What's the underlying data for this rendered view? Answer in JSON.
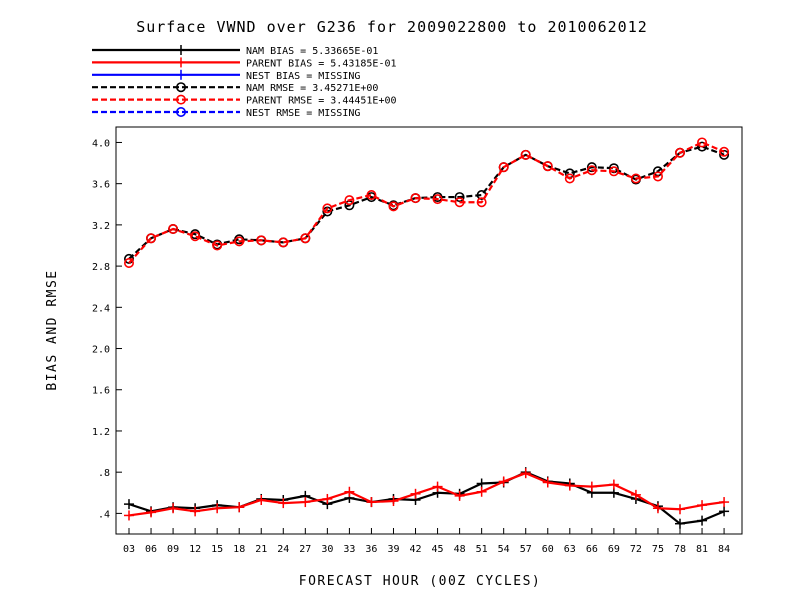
{
  "chart_data": {
    "type": "line",
    "title": "Surface VWND over G236 for 2009022800 to 2010062012",
    "xlabel": "FORECAST HOUR (00Z CYCLES)",
    "ylabel": "BIAS AND RMSE",
    "ylim": [
      0.2,
      4.15
    ],
    "yticks": [
      ".4",
      ".8",
      "1.2",
      "1.6",
      "2.0",
      "2.4",
      "2.8",
      "3.2",
      "3.6",
      "4.0"
    ],
    "ytick_values": [
      0.4,
      0.8,
      1.2,
      1.6,
      2.0,
      2.4,
      2.8,
      3.2,
      3.6,
      4.0
    ],
    "categories": [
      "03",
      "06",
      "09",
      "12",
      "15",
      "18",
      "21",
      "24",
      "27",
      "30",
      "33",
      "36",
      "39",
      "42",
      "45",
      "48",
      "51",
      "54",
      "57",
      "60",
      "63",
      "66",
      "69",
      "72",
      "75",
      "78",
      "81",
      "84"
    ],
    "legend_position": "top-left",
    "legend": [
      {
        "text": "NAM BIAS =  5.33665E-01",
        "color": "#000000",
        "dashed": false,
        "marker": "plus"
      },
      {
        "text": "PARENT BIAS =  5.43185E-01",
        "color": "#ff0000",
        "dashed": false,
        "marker": "plus"
      },
      {
        "text": "NEST BIAS = MISSING",
        "color": "#0000ff",
        "dashed": false,
        "marker": "plus"
      },
      {
        "text": "NAM RMSE =  3.45271E+00",
        "color": "#000000",
        "dashed": true,
        "marker": "circle"
      },
      {
        "text": "PARENT RMSE =  3.44451E+00",
        "color": "#ff0000",
        "dashed": true,
        "marker": "circle"
      },
      {
        "text": "NEST RMSE = MISSING",
        "color": "#0000ff",
        "dashed": true,
        "marker": "circle"
      }
    ],
    "series": [
      {
        "name": "NAM BIAS",
        "color": "#000000",
        "dashed": false,
        "marker": "plus",
        "values": [
          0.49,
          0.42,
          0.46,
          0.45,
          0.48,
          0.46,
          0.54,
          0.53,
          0.57,
          0.49,
          0.55,
          0.51,
          0.54,
          0.53,
          0.6,
          0.59,
          0.69,
          0.7,
          0.8,
          0.71,
          0.69,
          0.6,
          0.6,
          0.54,
          0.47,
          0.3,
          0.33,
          0.42
        ]
      },
      {
        "name": "PARENT BIAS",
        "color": "#ff0000",
        "dashed": false,
        "marker": "plus",
        "values": [
          0.38,
          0.41,
          0.45,
          0.42,
          0.45,
          0.46,
          0.53,
          0.5,
          0.51,
          0.54,
          0.61,
          0.51,
          0.52,
          0.59,
          0.66,
          0.57,
          0.61,
          0.71,
          0.79,
          0.7,
          0.67,
          0.66,
          0.68,
          0.58,
          0.45,
          0.44,
          0.48,
          0.51
        ]
      },
      {
        "name": "NAM RMSE",
        "color": "#000000",
        "dashed": true,
        "marker": "circle",
        "values": [
          2.87,
          3.07,
          3.16,
          3.11,
          3.01,
          3.06,
          3.05,
          3.03,
          3.07,
          3.33,
          3.39,
          3.47,
          3.39,
          3.46,
          3.47,
          3.47,
          3.49,
          3.76,
          3.88,
          3.77,
          3.7,
          3.76,
          3.75,
          3.64,
          3.72,
          3.9,
          3.96,
          3.88
        ]
      },
      {
        "name": "PARENT RMSE",
        "color": "#ff0000",
        "dashed": true,
        "marker": "circle",
        "values": [
          2.83,
          3.07,
          3.16,
          3.09,
          3.0,
          3.04,
          3.05,
          3.03,
          3.07,
          3.36,
          3.44,
          3.49,
          3.38,
          3.46,
          3.45,
          3.42,
          3.42,
          3.76,
          3.88,
          3.77,
          3.65,
          3.73,
          3.72,
          3.65,
          3.67,
          3.9,
          4.0,
          3.91
        ]
      }
    ]
  }
}
